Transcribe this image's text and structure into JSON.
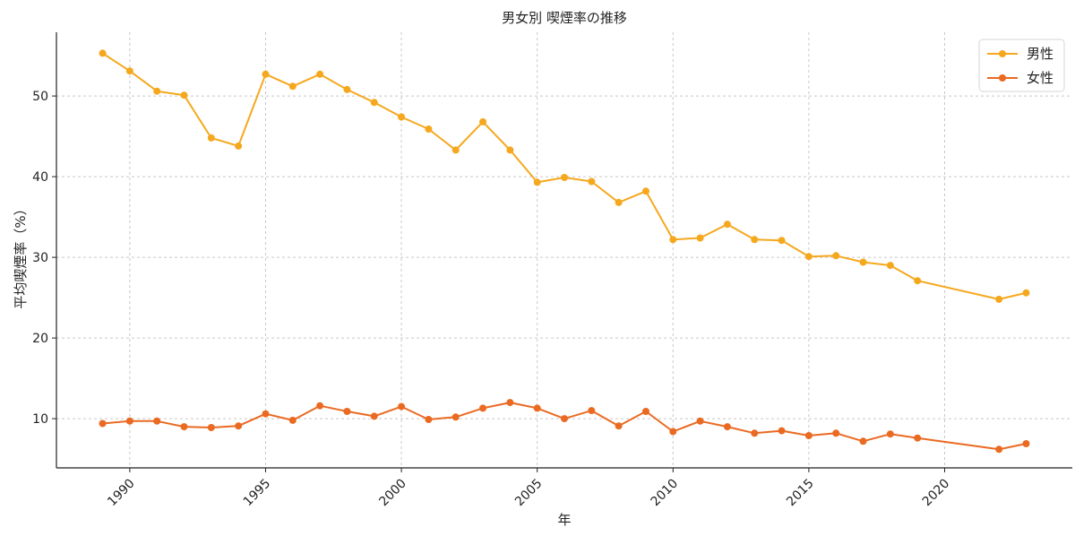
{
  "chart_data": {
    "type": "line",
    "title": "男女別 喫煙率の推移",
    "xlabel": "年",
    "ylabel": "平均喫煙率（%）",
    "xlim": [
      1987.3,
      2024.7
    ],
    "ylim": [
      3.9,
      57.9
    ],
    "x_ticks": [
      1990,
      1995,
      2000,
      2005,
      2010,
      2015,
      2020
    ],
    "y_ticks": [
      10,
      20,
      30,
      40,
      50
    ],
    "grid": true,
    "legend_position": "top-right",
    "series": [
      {
        "name": "男性",
        "color": "#f5a81e",
        "points": [
          [
            1989,
            55.3
          ],
          [
            1990,
            53.1
          ],
          [
            1991,
            50.6
          ],
          [
            1992,
            50.1
          ],
          [
            1993,
            44.8
          ],
          [
            1994,
            43.8
          ],
          [
            1995,
            52.7
          ],
          [
            1996,
            51.2
          ],
          [
            1997,
            52.7
          ],
          [
            1998,
            50.8
          ],
          [
            1999,
            49.2
          ],
          [
            2000,
            47.4
          ],
          [
            2001,
            45.9
          ],
          [
            2002,
            43.3
          ],
          [
            2003,
            46.8
          ],
          [
            2004,
            43.3
          ],
          [
            2005,
            39.3
          ],
          [
            2006,
            39.9
          ],
          [
            2007,
            39.4
          ],
          [
            2008,
            36.8
          ],
          [
            2009,
            38.2
          ],
          [
            2010,
            32.2
          ],
          [
            2011,
            32.4
          ],
          [
            2012,
            34.1
          ],
          [
            2013,
            32.2
          ],
          [
            2014,
            32.1
          ],
          [
            2015,
            30.1
          ],
          [
            2016,
            30.2
          ],
          [
            2017,
            29.4
          ],
          [
            2018,
            29.0
          ],
          [
            2019,
            27.1
          ],
          [
            2022,
            24.8
          ],
          [
            2023,
            25.6
          ]
        ]
      },
      {
        "name": "女性",
        "color": "#ea6a22",
        "points": [
          [
            1989,
            9.4
          ],
          [
            1990,
            9.7
          ],
          [
            1991,
            9.7
          ],
          [
            1992,
            9.0
          ],
          [
            1993,
            8.9
          ],
          [
            1994,
            9.1
          ],
          [
            1995,
            10.6
          ],
          [
            1996,
            9.8
          ],
          [
            1997,
            11.6
          ],
          [
            1998,
            10.9
          ],
          [
            1999,
            10.3
          ],
          [
            2000,
            11.5
          ],
          [
            2001,
            9.9
          ],
          [
            2002,
            10.2
          ],
          [
            2003,
            11.3
          ],
          [
            2004,
            12.0
          ],
          [
            2005,
            11.3
          ],
          [
            2006,
            10.0
          ],
          [
            2007,
            11.0
          ],
          [
            2008,
            9.1
          ],
          [
            2009,
            10.9
          ],
          [
            2010,
            8.4
          ],
          [
            2011,
            9.7
          ],
          [
            2012,
            9.0
          ],
          [
            2013,
            8.2
          ],
          [
            2014,
            8.5
          ],
          [
            2015,
            7.9
          ],
          [
            2016,
            8.2
          ],
          [
            2017,
            7.2
          ],
          [
            2018,
            8.1
          ],
          [
            2019,
            7.6
          ],
          [
            2022,
            6.2
          ],
          [
            2023,
            6.9
          ]
        ]
      }
    ]
  }
}
